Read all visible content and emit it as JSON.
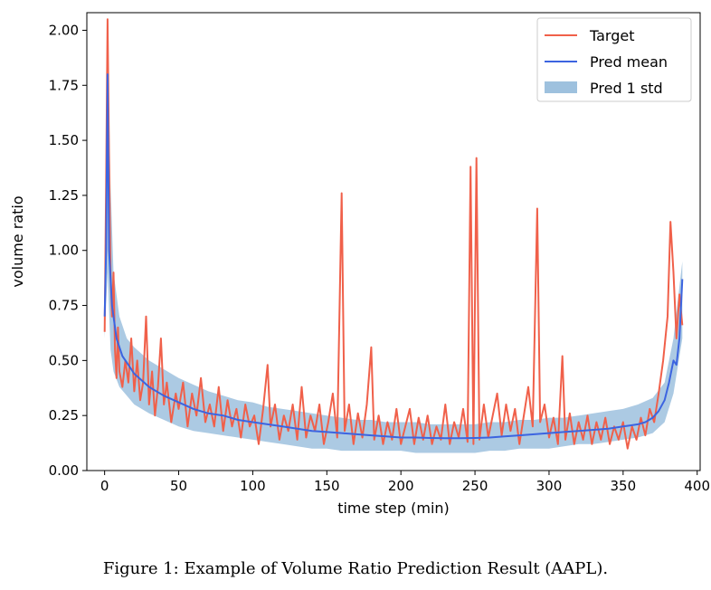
{
  "chart_data": {
    "type": "line",
    "title": "",
    "xlabel": "time step (min)",
    "ylabel": "volume ratio",
    "xlim": [
      -12,
      402
    ],
    "ylim": [
      0,
      2.08
    ],
    "xticks": [
      0,
      50,
      100,
      150,
      200,
      250,
      300,
      350,
      400
    ],
    "xtick_labels": [
      "0",
      "50",
      "100",
      "150",
      "200",
      "250",
      "300",
      "350",
      "400"
    ],
    "yticks": [
      0,
      0.25,
      0.5,
      0.75,
      1.0,
      1.25,
      1.5,
      1.75,
      2.0
    ],
    "ytick_labels": [
      "0.00",
      "0.25",
      "0.50",
      "0.75",
      "1.00",
      "1.25",
      "1.50",
      "1.75",
      "2.00"
    ],
    "legend_position": "upper-right",
    "series": [
      {
        "name": "Target",
        "kind": "line",
        "color": "#f0604a",
        "points": [
          [
            0,
            0.63
          ],
          [
            1,
            1.3
          ],
          [
            2,
            2.05
          ],
          [
            3,
            1.4
          ],
          [
            4,
            0.9
          ],
          [
            5,
            0.7
          ],
          [
            6,
            0.9
          ],
          [
            7,
            0.55
          ],
          [
            8,
            0.42
          ],
          [
            9,
            0.65
          ],
          [
            10,
            0.45
          ],
          [
            12,
            0.38
          ],
          [
            14,
            0.5
          ],
          [
            16,
            0.4
          ],
          [
            18,
            0.6
          ],
          [
            20,
            0.36
          ],
          [
            22,
            0.5
          ],
          [
            24,
            0.32
          ],
          [
            26,
            0.4
          ],
          [
            28,
            0.7
          ],
          [
            30,
            0.3
          ],
          [
            32,
            0.45
          ],
          [
            34,
            0.25
          ],
          [
            36,
            0.38
          ],
          [
            38,
            0.6
          ],
          [
            40,
            0.3
          ],
          [
            42,
            0.4
          ],
          [
            45,
            0.22
          ],
          [
            48,
            0.35
          ],
          [
            50,
            0.28
          ],
          [
            53,
            0.4
          ],
          [
            56,
            0.2
          ],
          [
            59,
            0.35
          ],
          [
            62,
            0.25
          ],
          [
            65,
            0.42
          ],
          [
            68,
            0.22
          ],
          [
            71,
            0.3
          ],
          [
            74,
            0.2
          ],
          [
            77,
            0.38
          ],
          [
            80,
            0.18
          ],
          [
            83,
            0.32
          ],
          [
            86,
            0.2
          ],
          [
            89,
            0.28
          ],
          [
            92,
            0.15
          ],
          [
            95,
            0.3
          ],
          [
            98,
            0.2
          ],
          [
            101,
            0.25
          ],
          [
            104,
            0.12
          ],
          [
            107,
            0.28
          ],
          [
            110,
            0.48
          ],
          [
            112,
            0.2
          ],
          [
            115,
            0.3
          ],
          [
            118,
            0.14
          ],
          [
            121,
            0.25
          ],
          [
            124,
            0.18
          ],
          [
            127,
            0.3
          ],
          [
            130,
            0.14
          ],
          [
            133,
            0.38
          ],
          [
            136,
            0.15
          ],
          [
            139,
            0.25
          ],
          [
            142,
            0.18
          ],
          [
            145,
            0.3
          ],
          [
            148,
            0.12
          ],
          [
            151,
            0.22
          ],
          [
            154,
            0.35
          ],
          [
            157,
            0.15
          ],
          [
            160,
            1.26
          ],
          [
            162,
            0.18
          ],
          [
            165,
            0.3
          ],
          [
            168,
            0.12
          ],
          [
            171,
            0.26
          ],
          [
            174,
            0.15
          ],
          [
            177,
            0.3
          ],
          [
            180,
            0.56
          ],
          [
            182,
            0.14
          ],
          [
            185,
            0.25
          ],
          [
            188,
            0.12
          ],
          [
            191,
            0.22
          ],
          [
            194,
            0.14
          ],
          [
            197,
            0.28
          ],
          [
            200,
            0.12
          ],
          [
            203,
            0.2
          ],
          [
            206,
            0.28
          ],
          [
            209,
            0.12
          ],
          [
            212,
            0.24
          ],
          [
            215,
            0.14
          ],
          [
            218,
            0.25
          ],
          [
            221,
            0.12
          ],
          [
            224,
            0.2
          ],
          [
            227,
            0.14
          ],
          [
            230,
            0.3
          ],
          [
            233,
            0.12
          ],
          [
            236,
            0.22
          ],
          [
            239,
            0.15
          ],
          [
            242,
            0.28
          ],
          [
            245,
            0.13
          ],
          [
            247,
            1.38
          ],
          [
            249,
            0.12
          ],
          [
            251,
            1.42
          ],
          [
            253,
            0.14
          ],
          [
            256,
            0.3
          ],
          [
            259,
            0.15
          ],
          [
            262,
            0.25
          ],
          [
            265,
            0.35
          ],
          [
            268,
            0.16
          ],
          [
            271,
            0.3
          ],
          [
            274,
            0.18
          ],
          [
            277,
            0.28
          ],
          [
            280,
            0.12
          ],
          [
            283,
            0.25
          ],
          [
            286,
            0.38
          ],
          [
            289,
            0.2
          ],
          [
            292,
            1.19
          ],
          [
            294,
            0.22
          ],
          [
            297,
            0.3
          ],
          [
            300,
            0.15
          ],
          [
            303,
            0.24
          ],
          [
            306,
            0.12
          ],
          [
            309,
            0.52
          ],
          [
            311,
            0.14
          ],
          [
            314,
            0.26
          ],
          [
            317,
            0.12
          ],
          [
            320,
            0.22
          ],
          [
            323,
            0.14
          ],
          [
            326,
            0.25
          ],
          [
            329,
            0.12
          ],
          [
            332,
            0.22
          ],
          [
            335,
            0.14
          ],
          [
            338,
            0.24
          ],
          [
            341,
            0.12
          ],
          [
            344,
            0.2
          ],
          [
            347,
            0.14
          ],
          [
            350,
            0.22
          ],
          [
            353,
            0.1
          ],
          [
            356,
            0.2
          ],
          [
            359,
            0.14
          ],
          [
            362,
            0.24
          ],
          [
            365,
            0.16
          ],
          [
            368,
            0.28
          ],
          [
            371,
            0.22
          ],
          [
            374,
            0.35
          ],
          [
            377,
            0.5
          ],
          [
            380,
            0.7
          ],
          [
            382,
            1.13
          ],
          [
            384,
            0.9
          ],
          [
            386,
            0.6
          ],
          [
            388,
            0.8
          ],
          [
            390,
            0.66
          ]
        ]
      },
      {
        "name": "Pred mean",
        "kind": "line",
        "color": "#3c64e0",
        "points": [
          [
            0,
            0.7
          ],
          [
            1,
            1.0
          ],
          [
            2,
            1.8
          ],
          [
            3,
            1.0
          ],
          [
            5,
            0.75
          ],
          [
            8,
            0.6
          ],
          [
            12,
            0.52
          ],
          [
            16,
            0.48
          ],
          [
            20,
            0.44
          ],
          [
            25,
            0.41
          ],
          [
            30,
            0.38
          ],
          [
            40,
            0.34
          ],
          [
            50,
            0.31
          ],
          [
            60,
            0.28
          ],
          [
            70,
            0.26
          ],
          [
            80,
            0.25
          ],
          [
            90,
            0.23
          ],
          [
            100,
            0.22
          ],
          [
            110,
            0.21
          ],
          [
            120,
            0.2
          ],
          [
            130,
            0.19
          ],
          [
            140,
            0.18
          ],
          [
            150,
            0.175
          ],
          [
            160,
            0.17
          ],
          [
            170,
            0.165
          ],
          [
            180,
            0.16
          ],
          [
            190,
            0.155
          ],
          [
            200,
            0.15
          ],
          [
            210,
            0.15
          ],
          [
            220,
            0.148
          ],
          [
            230,
            0.147
          ],
          [
            240,
            0.147
          ],
          [
            250,
            0.148
          ],
          [
            260,
            0.15
          ],
          [
            270,
            0.155
          ],
          [
            280,
            0.16
          ],
          [
            290,
            0.165
          ],
          [
            300,
            0.17
          ],
          [
            310,
            0.175
          ],
          [
            320,
            0.18
          ],
          [
            330,
            0.185
          ],
          [
            340,
            0.19
          ],
          [
            350,
            0.2
          ],
          [
            355,
            0.205
          ],
          [
            360,
            0.21
          ],
          [
            365,
            0.22
          ],
          [
            370,
            0.24
          ],
          [
            374,
            0.27
          ],
          [
            378,
            0.32
          ],
          [
            381,
            0.4
          ],
          [
            384,
            0.5
          ],
          [
            386,
            0.48
          ],
          [
            388,
            0.6
          ],
          [
            390,
            0.87
          ]
        ]
      },
      {
        "name": "Pred 1 std",
        "kind": "band",
        "color": "#9ec1de",
        "x": [
          0,
          2,
          4,
          6,
          10,
          15,
          20,
          30,
          40,
          50,
          60,
          70,
          80,
          90,
          100,
          110,
          120,
          130,
          140,
          150,
          160,
          170,
          180,
          190,
          200,
          210,
          220,
          230,
          240,
          250,
          260,
          270,
          280,
          290,
          300,
          310,
          320,
          330,
          340,
          350,
          360,
          370,
          378,
          384,
          390
        ],
        "lower": [
          0.6,
          0.9,
          0.55,
          0.45,
          0.38,
          0.34,
          0.3,
          0.26,
          0.23,
          0.2,
          0.18,
          0.17,
          0.16,
          0.15,
          0.14,
          0.13,
          0.12,
          0.11,
          0.1,
          0.1,
          0.09,
          0.09,
          0.09,
          0.09,
          0.09,
          0.08,
          0.08,
          0.08,
          0.08,
          0.08,
          0.09,
          0.09,
          0.1,
          0.1,
          0.1,
          0.11,
          0.12,
          0.12,
          0.13,
          0.14,
          0.15,
          0.17,
          0.22,
          0.35,
          0.6
        ],
        "upper": [
          0.8,
          2.0,
          1.3,
          0.9,
          0.7,
          0.6,
          0.56,
          0.5,
          0.46,
          0.42,
          0.39,
          0.36,
          0.34,
          0.32,
          0.31,
          0.29,
          0.28,
          0.27,
          0.26,
          0.25,
          0.24,
          0.23,
          0.23,
          0.22,
          0.22,
          0.22,
          0.21,
          0.21,
          0.21,
          0.21,
          0.22,
          0.22,
          0.23,
          0.23,
          0.24,
          0.24,
          0.25,
          0.26,
          0.27,
          0.28,
          0.3,
          0.33,
          0.4,
          0.6,
          0.95
        ]
      }
    ]
  },
  "caption": "Figure 1: Example of Volume Ratio Prediction Result (AAPL).",
  "colors": {
    "target": "#f0604a",
    "pred_mean": "#3c64e0",
    "pred_std": "#9ec1de",
    "axis": "#000000",
    "legend_border": "#cccccc"
  }
}
